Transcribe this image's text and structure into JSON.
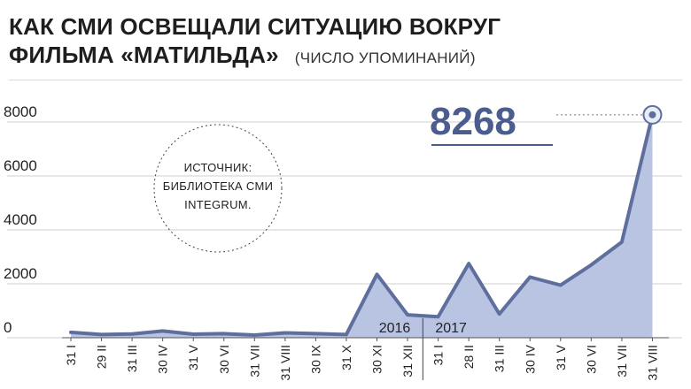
{
  "header": {
    "title_line1": "КАК СМИ ОСВЕЩАЛИ СИТУАЦИЮ ВОКРУГ",
    "title_line2": "ФИЛЬМА «МАТИЛЬДА»",
    "subtitle": "(ЧИСЛО УПОМИНАНИЙ)"
  },
  "source_note": [
    "ИСТОЧНИК:",
    "БИБЛИОТЕКА СМИ",
    "INTEGRUM."
  ],
  "colors": {
    "fill": "#b9c4e2",
    "line": "#5e6f9e",
    "peak_text": "#4b5d8f",
    "grid": "#cfcfcf"
  },
  "chart_data": {
    "type": "area",
    "title": "КАК СМИ ОСВЕЩАЛИ СИТУАЦИЮ ВОКРУГ ФИЛЬМА «МАТИЛЬДА»",
    "subtitle": "(ЧИСЛО УПОМИНАНИЙ)",
    "x": [
      "31 I",
      "29 II",
      "31 III",
      "30 IV",
      "31 V",
      "30 VI",
      "31 VII",
      "31 VIII",
      "30 IX",
      "31 X",
      "30 XI",
      "31 XII",
      "31 I",
      "28 II",
      "31 III",
      "30 IV",
      "31 V",
      "30 VI",
      "31 VII",
      "31 VIII"
    ],
    "y": [
      200,
      120,
      140,
      250,
      130,
      150,
      100,
      180,
      150,
      120,
      2350,
      850,
      780,
      2750,
      880,
      2250,
      1950,
      2700,
      3550,
      8268
    ],
    "years": [
      {
        "label": "2016",
        "from_index": 0
      },
      {
        "label": "2017",
        "from_index": 12
      }
    ],
    "yticks": [
      0,
      2000,
      4000,
      6000,
      8000
    ],
    "yticks_labels": [
      "0",
      "2000",
      "4000",
      "6000",
      "8000"
    ],
    "ylim": [
      0,
      9000
    ],
    "grid": true,
    "annotation": {
      "text": "8268",
      "index": 19
    }
  }
}
